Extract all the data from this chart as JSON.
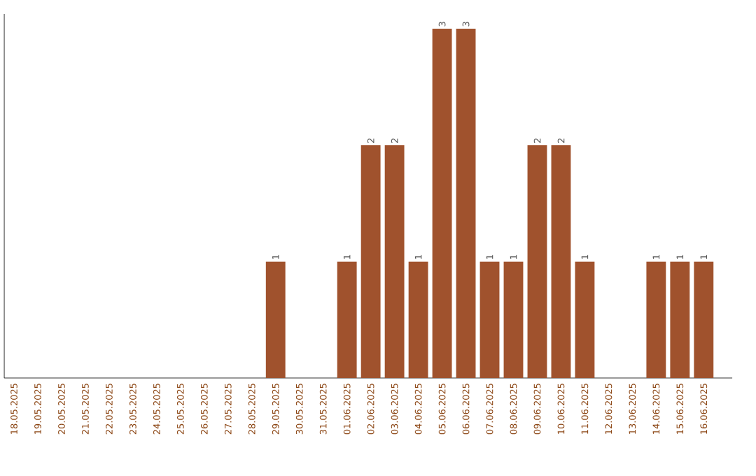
{
  "chart_data": {
    "type": "bar",
    "categories": [
      "18.05.2025",
      "19.05.2025",
      "20.05.2025",
      "21.05.2025",
      "22.05.2025",
      "23.05.2025",
      "24.05.2025",
      "25.05.2025",
      "26.05.2025",
      "27.05.2025",
      "28.05.2025",
      "29.05.2025",
      "30.05.2025",
      "31.05.2025",
      "01.06.2025",
      "02.06.2025",
      "03.06.2025",
      "04.06.2025",
      "05.06.2025",
      "06.06.2025",
      "07.06.2025",
      "08.06.2025",
      "09.06.2025",
      "10.06.2025",
      "11.06.2025",
      "12.06.2025",
      "13.06.2025",
      "14.06.2025",
      "15.06.2025",
      "16.06.2025"
    ],
    "values": [
      0,
      0,
      0,
      0,
      0,
      0,
      0,
      0,
      0,
      0,
      0,
      1,
      0,
      0,
      1,
      2,
      2,
      1,
      3,
      3,
      1,
      1,
      2,
      2,
      1,
      0,
      0,
      1,
      1,
      1
    ],
    "value_labels": [
      null,
      null,
      null,
      null,
      null,
      null,
      null,
      null,
      null,
      null,
      null,
      "1",
      null,
      null,
      "1",
      "2",
      "2",
      "1",
      "3",
      "3",
      "1",
      "1",
      "2",
      "2",
      "1",
      null,
      null,
      "1",
      "1",
      "1"
    ],
    "color": "#a0522d",
    "tick_labels": "x"
  }
}
